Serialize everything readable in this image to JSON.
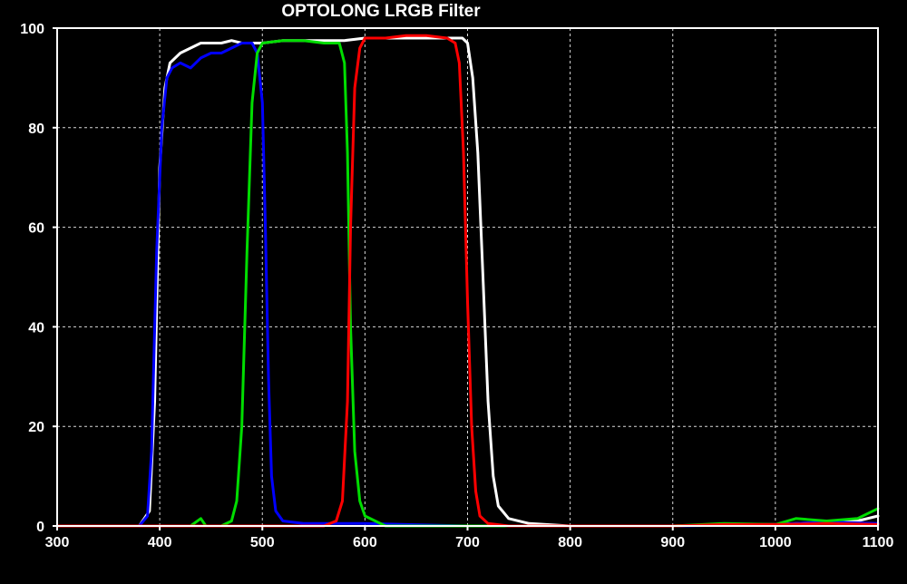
{
  "chart_data": {
    "type": "line",
    "title": "OPTOLONG LRGB Filter",
    "xlabel": "",
    "ylabel": "",
    "xlim": [
      300,
      1100
    ],
    "ylim": [
      0,
      100
    ],
    "x_ticks": [
      300,
      400,
      500,
      600,
      700,
      800,
      900,
      1000,
      1100
    ],
    "y_ticks": [
      0,
      20,
      40,
      60,
      80,
      100
    ],
    "grid": true,
    "legend": "none",
    "background": "#000000",
    "axis_color": "#ffffff",
    "grid_color": "#ffffff",
    "series": [
      {
        "color": "#ffffff",
        "points": [
          [
            300,
            0
          ],
          [
            380,
            0
          ],
          [
            390,
            3
          ],
          [
            395,
            25
          ],
          [
            400,
            72
          ],
          [
            405,
            88
          ],
          [
            410,
            93
          ],
          [
            420,
            95
          ],
          [
            430,
            96
          ],
          [
            440,
            97
          ],
          [
            450,
            97
          ],
          [
            460,
            97
          ],
          [
            470,
            97.5
          ],
          [
            480,
            97
          ],
          [
            500,
            97
          ],
          [
            520,
            97.5
          ],
          [
            540,
            97.5
          ],
          [
            560,
            97.5
          ],
          [
            580,
            97.5
          ],
          [
            600,
            98
          ],
          [
            620,
            98
          ],
          [
            640,
            98
          ],
          [
            660,
            98
          ],
          [
            680,
            98
          ],
          [
            695,
            98
          ],
          [
            700,
            97
          ],
          [
            705,
            90
          ],
          [
            710,
            75
          ],
          [
            715,
            50
          ],
          [
            720,
            25
          ],
          [
            725,
            10
          ],
          [
            730,
            4
          ],
          [
            740,
            1.5
          ],
          [
            760,
            0.5
          ],
          [
            800,
            0
          ],
          [
            900,
            0
          ],
          [
            950,
            0.3
          ],
          [
            1000,
            0.3
          ],
          [
            1050,
            0.8
          ],
          [
            1080,
            1
          ],
          [
            1100,
            2
          ]
        ]
      },
      {
        "color": "#0000ff",
        "points": [
          [
            300,
            0
          ],
          [
            350,
            0
          ],
          [
            380,
            0
          ],
          [
            388,
            2
          ],
          [
            392,
            15
          ],
          [
            397,
            55
          ],
          [
            402,
            80
          ],
          [
            407,
            90
          ],
          [
            412,
            92
          ],
          [
            420,
            93
          ],
          [
            430,
            92
          ],
          [
            440,
            94
          ],
          [
            450,
            95
          ],
          [
            460,
            95
          ],
          [
            470,
            96
          ],
          [
            480,
            97
          ],
          [
            490,
            97
          ],
          [
            495,
            95
          ],
          [
            500,
            85
          ],
          [
            503,
            60
          ],
          [
            506,
            30
          ],
          [
            509,
            10
          ],
          [
            513,
            3
          ],
          [
            520,
            1
          ],
          [
            540,
            0.5
          ],
          [
            600,
            0.5
          ],
          [
            700,
            0
          ],
          [
            900,
            0
          ],
          [
            1000,
            0.3
          ],
          [
            1050,
            0.8
          ],
          [
            1100,
            0.5
          ]
        ]
      },
      {
        "color": "#00dd00",
        "points": [
          [
            300,
            0
          ],
          [
            430,
            0
          ],
          [
            440,
            1.5
          ],
          [
            445,
            0
          ],
          [
            460,
            0
          ],
          [
            470,
            1
          ],
          [
            475,
            5
          ],
          [
            480,
            20
          ],
          [
            485,
            55
          ],
          [
            490,
            85
          ],
          [
            495,
            95
          ],
          [
            500,
            97
          ],
          [
            520,
            97.5
          ],
          [
            540,
            97.5
          ],
          [
            560,
            97
          ],
          [
            575,
            97
          ],
          [
            580,
            93
          ],
          [
            583,
            75
          ],
          [
            586,
            40
          ],
          [
            590,
            15
          ],
          [
            595,
            5
          ],
          [
            600,
            2
          ],
          [
            620,
            0
          ],
          [
            700,
            0
          ],
          [
            800,
            0
          ],
          [
            900,
            0
          ],
          [
            950,
            0.5
          ],
          [
            1000,
            0.3
          ],
          [
            1020,
            1.5
          ],
          [
            1050,
            1
          ],
          [
            1080,
            1.5
          ],
          [
            1100,
            3.5
          ]
        ]
      },
      {
        "color": "#ff0000",
        "points": [
          [
            300,
            0
          ],
          [
            560,
            0
          ],
          [
            572,
            1
          ],
          [
            578,
            5
          ],
          [
            583,
            25
          ],
          [
            586,
            60
          ],
          [
            590,
            88
          ],
          [
            595,
            96
          ],
          [
            600,
            98
          ],
          [
            620,
            98
          ],
          [
            640,
            98.5
          ],
          [
            660,
            98.5
          ],
          [
            680,
            98
          ],
          [
            688,
            97
          ],
          [
            692,
            93
          ],
          [
            696,
            75
          ],
          [
            700,
            45
          ],
          [
            704,
            20
          ],
          [
            708,
            7
          ],
          [
            712,
            2
          ],
          [
            720,
            0.5
          ],
          [
            740,
            0
          ],
          [
            900,
            0
          ],
          [
            950,
            0.3
          ],
          [
            1000,
            0.3
          ],
          [
            1050,
            0.5
          ],
          [
            1100,
            0.3
          ]
        ]
      }
    ]
  }
}
